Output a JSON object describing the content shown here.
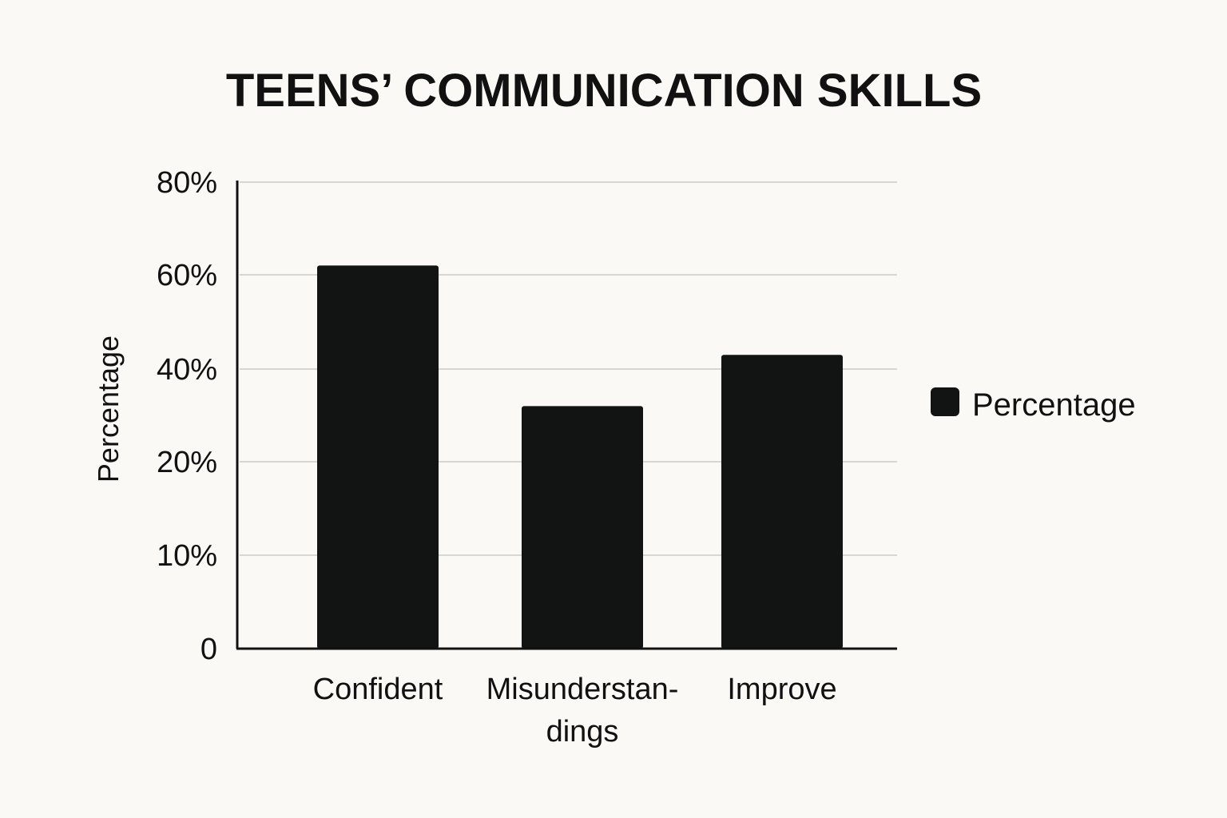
{
  "chart_data": {
    "type": "bar",
    "title": "TEENS’ COMMUNICATION SKILLS",
    "xlabel": "",
    "ylabel": "Percentage",
    "categories": [
      [
        "Confident"
      ],
      [
        "Misunderstan-",
        "dings"
      ],
      [
        "Improve"
      ]
    ],
    "series": [
      {
        "name": "Percentage",
        "values": [
          62,
          32,
          43
        ],
        "color": "#111412"
      }
    ],
    "y_ticks": [
      {
        "label": "0",
        "value": 0
      },
      {
        "label": "10%",
        "value": 10
      },
      {
        "label": "20%",
        "value": 20
      },
      {
        "label": "40%",
        "value": 40
      },
      {
        "label": "60%",
        "value": 60
      },
      {
        "label": "80%",
        "value": 80
      }
    ],
    "ylim": [
      0,
      80
    ],
    "grid": true,
    "legend_position": "right"
  }
}
